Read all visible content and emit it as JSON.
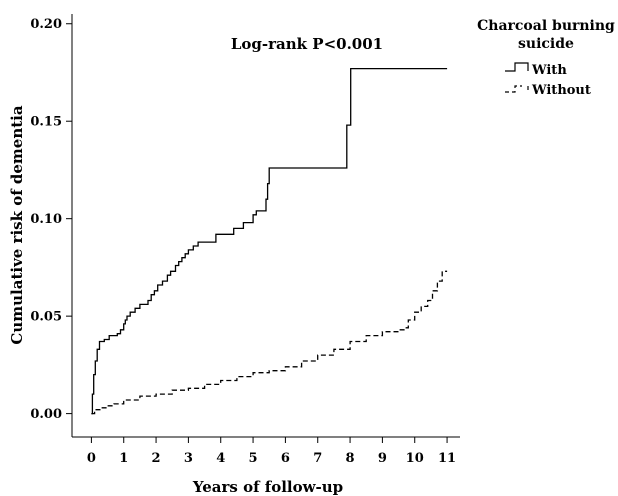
{
  "chart_data": {
    "type": "line",
    "title": "",
    "annotation": "Log-rank P<0.001",
    "xlabel": "Years of follow-up",
    "ylabel": "Cumulative risk of dementia",
    "xlim": [
      -0.6,
      11.4
    ],
    "ylim": [
      -0.012,
      0.205
    ],
    "x_ticks": [
      0,
      1,
      2,
      3,
      4,
      5,
      6,
      7,
      8,
      9,
      10,
      11
    ],
    "x_tick_labels": [
      "0",
      "1",
      "2",
      "3",
      "4",
      "5",
      "6",
      "7",
      "8",
      "9",
      "10",
      "11"
    ],
    "y_ticks": [
      0.0,
      0.05,
      0.1,
      0.15,
      0.2
    ],
    "y_tick_labels": [
      "0.00",
      "0.05",
      "0.10",
      "0.15",
      "0.20"
    ],
    "grid": false,
    "legend": {
      "title_lines": [
        "Charcoal burning",
        "suicide"
      ],
      "placement": "top-right, outside plot"
    },
    "series": [
      {
        "name": "With",
        "style": "solid",
        "color": "#000000",
        "points": [
          [
            0.0,
            0.0
          ],
          [
            0.03,
            0.01
          ],
          [
            0.07,
            0.02
          ],
          [
            0.12,
            0.027
          ],
          [
            0.18,
            0.033
          ],
          [
            0.25,
            0.037
          ],
          [
            0.4,
            0.038
          ],
          [
            0.55,
            0.04
          ],
          [
            0.8,
            0.041
          ],
          [
            0.9,
            0.043
          ],
          [
            1.0,
            0.046
          ],
          [
            1.05,
            0.048
          ],
          [
            1.1,
            0.05
          ],
          [
            1.2,
            0.052
          ],
          [
            1.35,
            0.054
          ],
          [
            1.5,
            0.056
          ],
          [
            1.65,
            0.056
          ],
          [
            1.75,
            0.058
          ],
          [
            1.85,
            0.061
          ],
          [
            1.95,
            0.063
          ],
          [
            2.05,
            0.066
          ],
          [
            2.2,
            0.068
          ],
          [
            2.35,
            0.071
          ],
          [
            2.45,
            0.073
          ],
          [
            2.6,
            0.076
          ],
          [
            2.7,
            0.078
          ],
          [
            2.8,
            0.08
          ],
          [
            2.9,
            0.082
          ],
          [
            3.0,
            0.084
          ],
          [
            3.15,
            0.086
          ],
          [
            3.3,
            0.088
          ],
          [
            3.8,
            0.088
          ],
          [
            3.85,
            0.092
          ],
          [
            4.35,
            0.092
          ],
          [
            4.4,
            0.095
          ],
          [
            4.65,
            0.095
          ],
          [
            4.7,
            0.098
          ],
          [
            4.95,
            0.098
          ],
          [
            5.0,
            0.102
          ],
          [
            5.1,
            0.104
          ],
          [
            5.35,
            0.104
          ],
          [
            5.4,
            0.11
          ],
          [
            5.45,
            0.118
          ],
          [
            5.5,
            0.126
          ],
          [
            7.85,
            0.126
          ],
          [
            7.9,
            0.148
          ],
          [
            7.98,
            0.148
          ],
          [
            8.02,
            0.177
          ],
          [
            11.0,
            0.177
          ]
        ]
      },
      {
        "name": "Without",
        "style": "dashed",
        "color": "#000000",
        "points": [
          [
            0.0,
            0.0
          ],
          [
            0.1,
            0.002
          ],
          [
            0.3,
            0.003
          ],
          [
            0.5,
            0.004
          ],
          [
            0.7,
            0.005
          ],
          [
            1.0,
            0.007
          ],
          [
            1.5,
            0.009
          ],
          [
            2.0,
            0.01
          ],
          [
            2.5,
            0.012
          ],
          [
            3.0,
            0.013
          ],
          [
            3.5,
            0.015
          ],
          [
            4.0,
            0.017
          ],
          [
            4.5,
            0.019
          ],
          [
            5.0,
            0.021
          ],
          [
            5.5,
            0.022
          ],
          [
            6.0,
            0.024
          ],
          [
            6.5,
            0.027
          ],
          [
            7.0,
            0.03
          ],
          [
            7.5,
            0.033
          ],
          [
            8.0,
            0.037
          ],
          [
            8.5,
            0.04
          ],
          [
            9.0,
            0.042
          ],
          [
            9.5,
            0.043
          ],
          [
            9.7,
            0.044
          ],
          [
            9.8,
            0.048
          ],
          [
            10.0,
            0.052
          ],
          [
            10.2,
            0.055
          ],
          [
            10.4,
            0.058
          ],
          [
            10.55,
            0.063
          ],
          [
            10.7,
            0.068
          ],
          [
            10.85,
            0.073
          ],
          [
            11.0,
            0.073
          ]
        ]
      }
    ]
  }
}
